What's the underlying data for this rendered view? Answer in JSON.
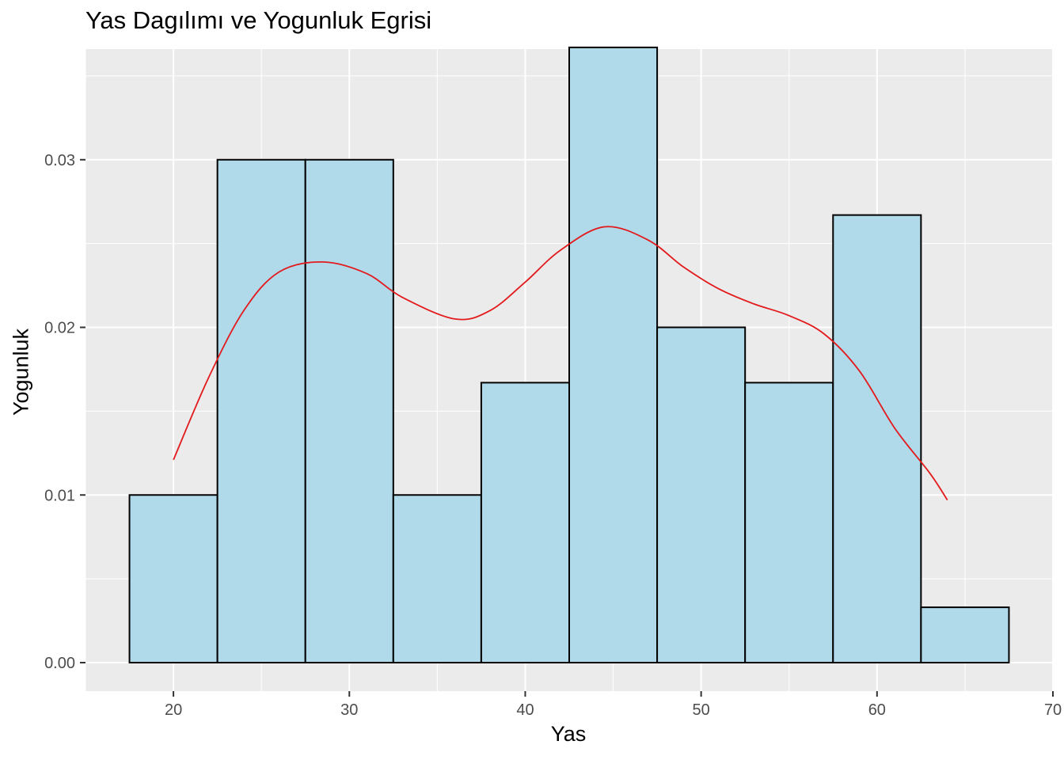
{
  "chart_data": {
    "type": "bar",
    "title": "Yas Dagılımı ve Yogunluk Egrisi",
    "xlabel": "Yas",
    "ylabel": "Yogunluk",
    "xlim": [
      15,
      70
    ],
    "ylim": [
      -0.0017,
      0.0366
    ],
    "x_ticks": [
      20,
      30,
      40,
      50,
      60,
      70
    ],
    "y_ticks": [
      0.0,
      0.01,
      0.02,
      0.03
    ],
    "x_tick_labels": [
      "20",
      "30",
      "40",
      "50",
      "60",
      "70"
    ],
    "y_tick_labels": [
      "0.00",
      "0.01",
      "0.02",
      "0.03"
    ],
    "grid": true,
    "bin_width": 5,
    "bins": [
      {
        "x0": 17.5,
        "x1": 22.5,
        "density": 0.01
      },
      {
        "x0": 22.5,
        "x1": 27.5,
        "density": 0.03
      },
      {
        "x0": 27.5,
        "x1": 32.5,
        "density": 0.03
      },
      {
        "x0": 32.5,
        "x1": 37.5,
        "density": 0.01
      },
      {
        "x0": 37.5,
        "x1": 42.5,
        "density": 0.0167
      },
      {
        "x0": 42.5,
        "x1": 47.5,
        "density": 0.0367
      },
      {
        "x0": 47.5,
        "x1": 52.5,
        "density": 0.02
      },
      {
        "x0": 52.5,
        "x1": 57.5,
        "density": 0.0167
      },
      {
        "x0": 57.5,
        "x1": 62.5,
        "density": 0.0267
      },
      {
        "x0": 62.5,
        "x1": 67.5,
        "density": 0.0033
      }
    ],
    "density_curve": {
      "x": [
        20,
        22,
        24,
        26,
        28.5,
        31,
        33,
        36,
        38,
        40,
        42,
        44.5,
        47,
        49,
        51,
        53,
        55,
        57,
        59,
        61,
        63,
        64
      ],
      "y": [
        0.0121,
        0.017,
        0.021,
        0.0233,
        0.0239,
        0.0232,
        0.0218,
        0.0205,
        0.021,
        0.0227,
        0.0246,
        0.026,
        0.0252,
        0.0236,
        0.0223,
        0.0214,
        0.0207,
        0.0196,
        0.0174,
        0.014,
        0.0113,
        0.0097
      ]
    },
    "colors": {
      "panel_background": "#ebebeb",
      "grid": "#ffffff",
      "bar_fill": "#b0d9ea",
      "bar_outline": "#000000",
      "density_line": "#e31a1c"
    }
  }
}
